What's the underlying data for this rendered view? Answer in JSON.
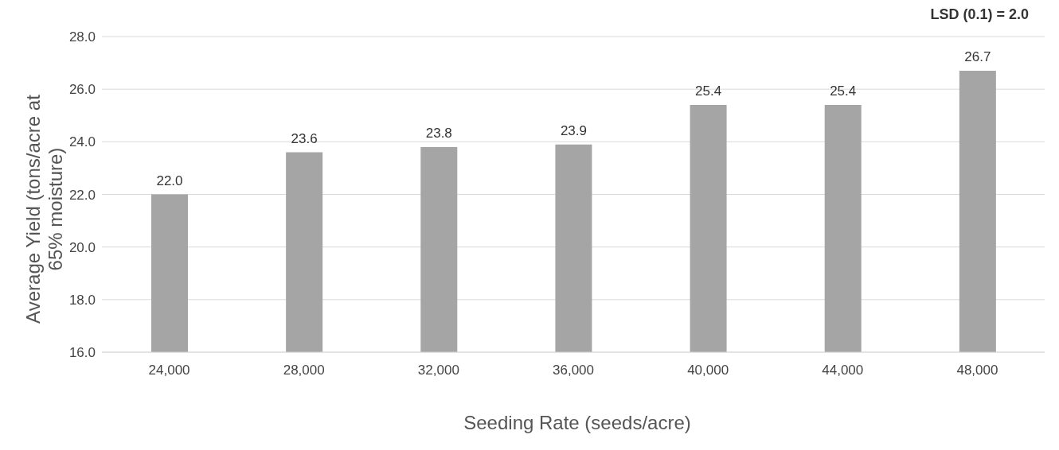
{
  "chart_data": {
    "type": "bar",
    "xlabel": "Seeding Rate (seeds/acre)",
    "ylabel": "Average Yield (tons/acre at 65% moisture)",
    "categories": [
      "24,000",
      "28,000",
      "32,000",
      "36,000",
      "40,000",
      "44,000",
      "48,000"
    ],
    "values": [
      22.0,
      23.6,
      23.8,
      23.9,
      25.4,
      25.4,
      26.7
    ],
    "value_labels": [
      "22.0",
      "23.6",
      "23.8",
      "23.9",
      "25.4",
      "25.4",
      "26.7"
    ],
    "color": "#a5a5a5",
    "ylim": [
      16,
      28
    ],
    "yticks": [
      {
        "value": 16,
        "label": "16.0"
      },
      {
        "value": 18,
        "label": "18.0"
      },
      {
        "value": 20,
        "label": "20.0"
      },
      {
        "value": 22,
        "label": "22.0"
      },
      {
        "value": 24,
        "label": "24.0"
      },
      {
        "value": 26,
        "label": "26.0"
      },
      {
        "value": 28,
        "label": "28.0"
      }
    ],
    "grid": "y",
    "legend": false,
    "annotations": [
      "LSD (0.1) = 2.0"
    ]
  }
}
